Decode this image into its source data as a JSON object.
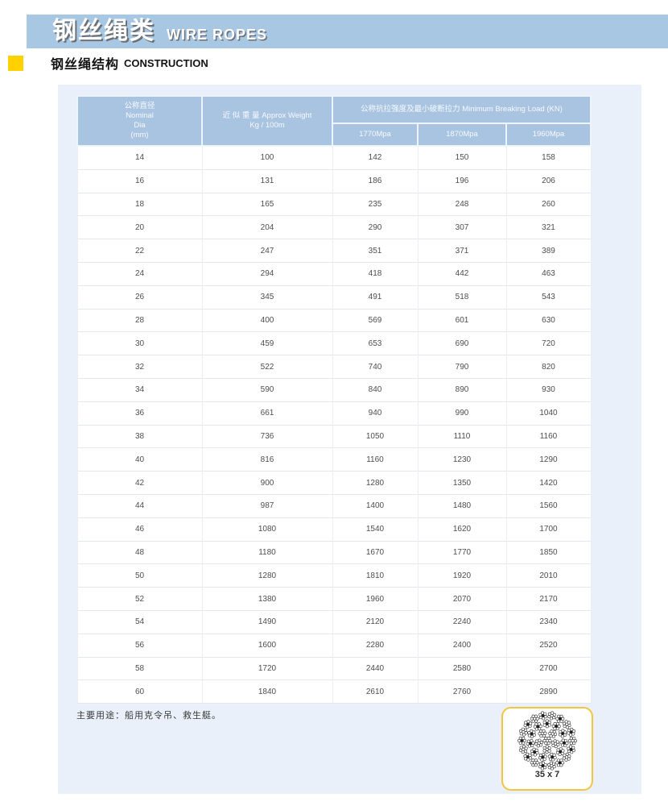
{
  "banner": {
    "title_zh": "钢丝绳类",
    "title_en": "WIRE ROPES"
  },
  "section": {
    "title_zh": "钢丝绳结构",
    "title_en": "CONSTRUCTION"
  },
  "colors": {
    "banner_bg": "#a7c7e3",
    "accent_yellow": "#ffd100",
    "panel_bg": "#e9f0f9",
    "table_header_bg": "#a9c4e1",
    "diagram_border": "#f2c53d"
  },
  "table": {
    "header": {
      "diameter_lines": [
        "公称直径",
        "Nominal",
        "Dia",
        "(mm)"
      ],
      "weight_lines": [
        "近 似 重 量 Approx Weight",
        "Kg / 100m"
      ],
      "breaking_load": "公称抗拉强度及最小破断拉力 Minimum Breaking Load (KN)",
      "grades": [
        "1770Mpa",
        "1870Mpa",
        "1960Mpa"
      ]
    },
    "rows": [
      [
        "14",
        "100",
        "142",
        "150",
        "158"
      ],
      [
        "16",
        "131",
        "186",
        "196",
        "206"
      ],
      [
        "18",
        "165",
        "235",
        "248",
        "260"
      ],
      [
        "20",
        "204",
        "290",
        "307",
        "321"
      ],
      [
        "22",
        "247",
        "351",
        "371",
        "389"
      ],
      [
        "24",
        "294",
        "418",
        "442",
        "463"
      ],
      [
        "26",
        "345",
        "491",
        "518",
        "543"
      ],
      [
        "28",
        "400",
        "569",
        "601",
        "630"
      ],
      [
        "30",
        "459",
        "653",
        "690",
        "720"
      ],
      [
        "32",
        "522",
        "740",
        "790",
        "820"
      ],
      [
        "34",
        "590",
        "840",
        "890",
        "930"
      ],
      [
        "36",
        "661",
        "940",
        "990",
        "1040"
      ],
      [
        "38",
        "736",
        "1050",
        "1110",
        "1160"
      ],
      [
        "40",
        "816",
        "1160",
        "1230",
        "1290"
      ],
      [
        "42",
        "900",
        "1280",
        "1350",
        "1420"
      ],
      [
        "44",
        "987",
        "1400",
        "1480",
        "1560"
      ],
      [
        "46",
        "1080",
        "1540",
        "1620",
        "1700"
      ],
      [
        "48",
        "1180",
        "1670",
        "1770",
        "1850"
      ],
      [
        "50",
        "1280",
        "1810",
        "1920",
        "2010"
      ],
      [
        "52",
        "1380",
        "1960",
        "2070",
        "2170"
      ],
      [
        "54",
        "1490",
        "2120",
        "2240",
        "2340"
      ],
      [
        "56",
        "1600",
        "2280",
        "2400",
        "2520"
      ],
      [
        "58",
        "1720",
        "2440",
        "2580",
        "2700"
      ],
      [
        "60",
        "1840",
        "2610",
        "2760",
        "2890"
      ]
    ]
  },
  "footnote": "主要用途：船用克令吊、救生艇。",
  "diagram": {
    "label": "35 x 7"
  }
}
